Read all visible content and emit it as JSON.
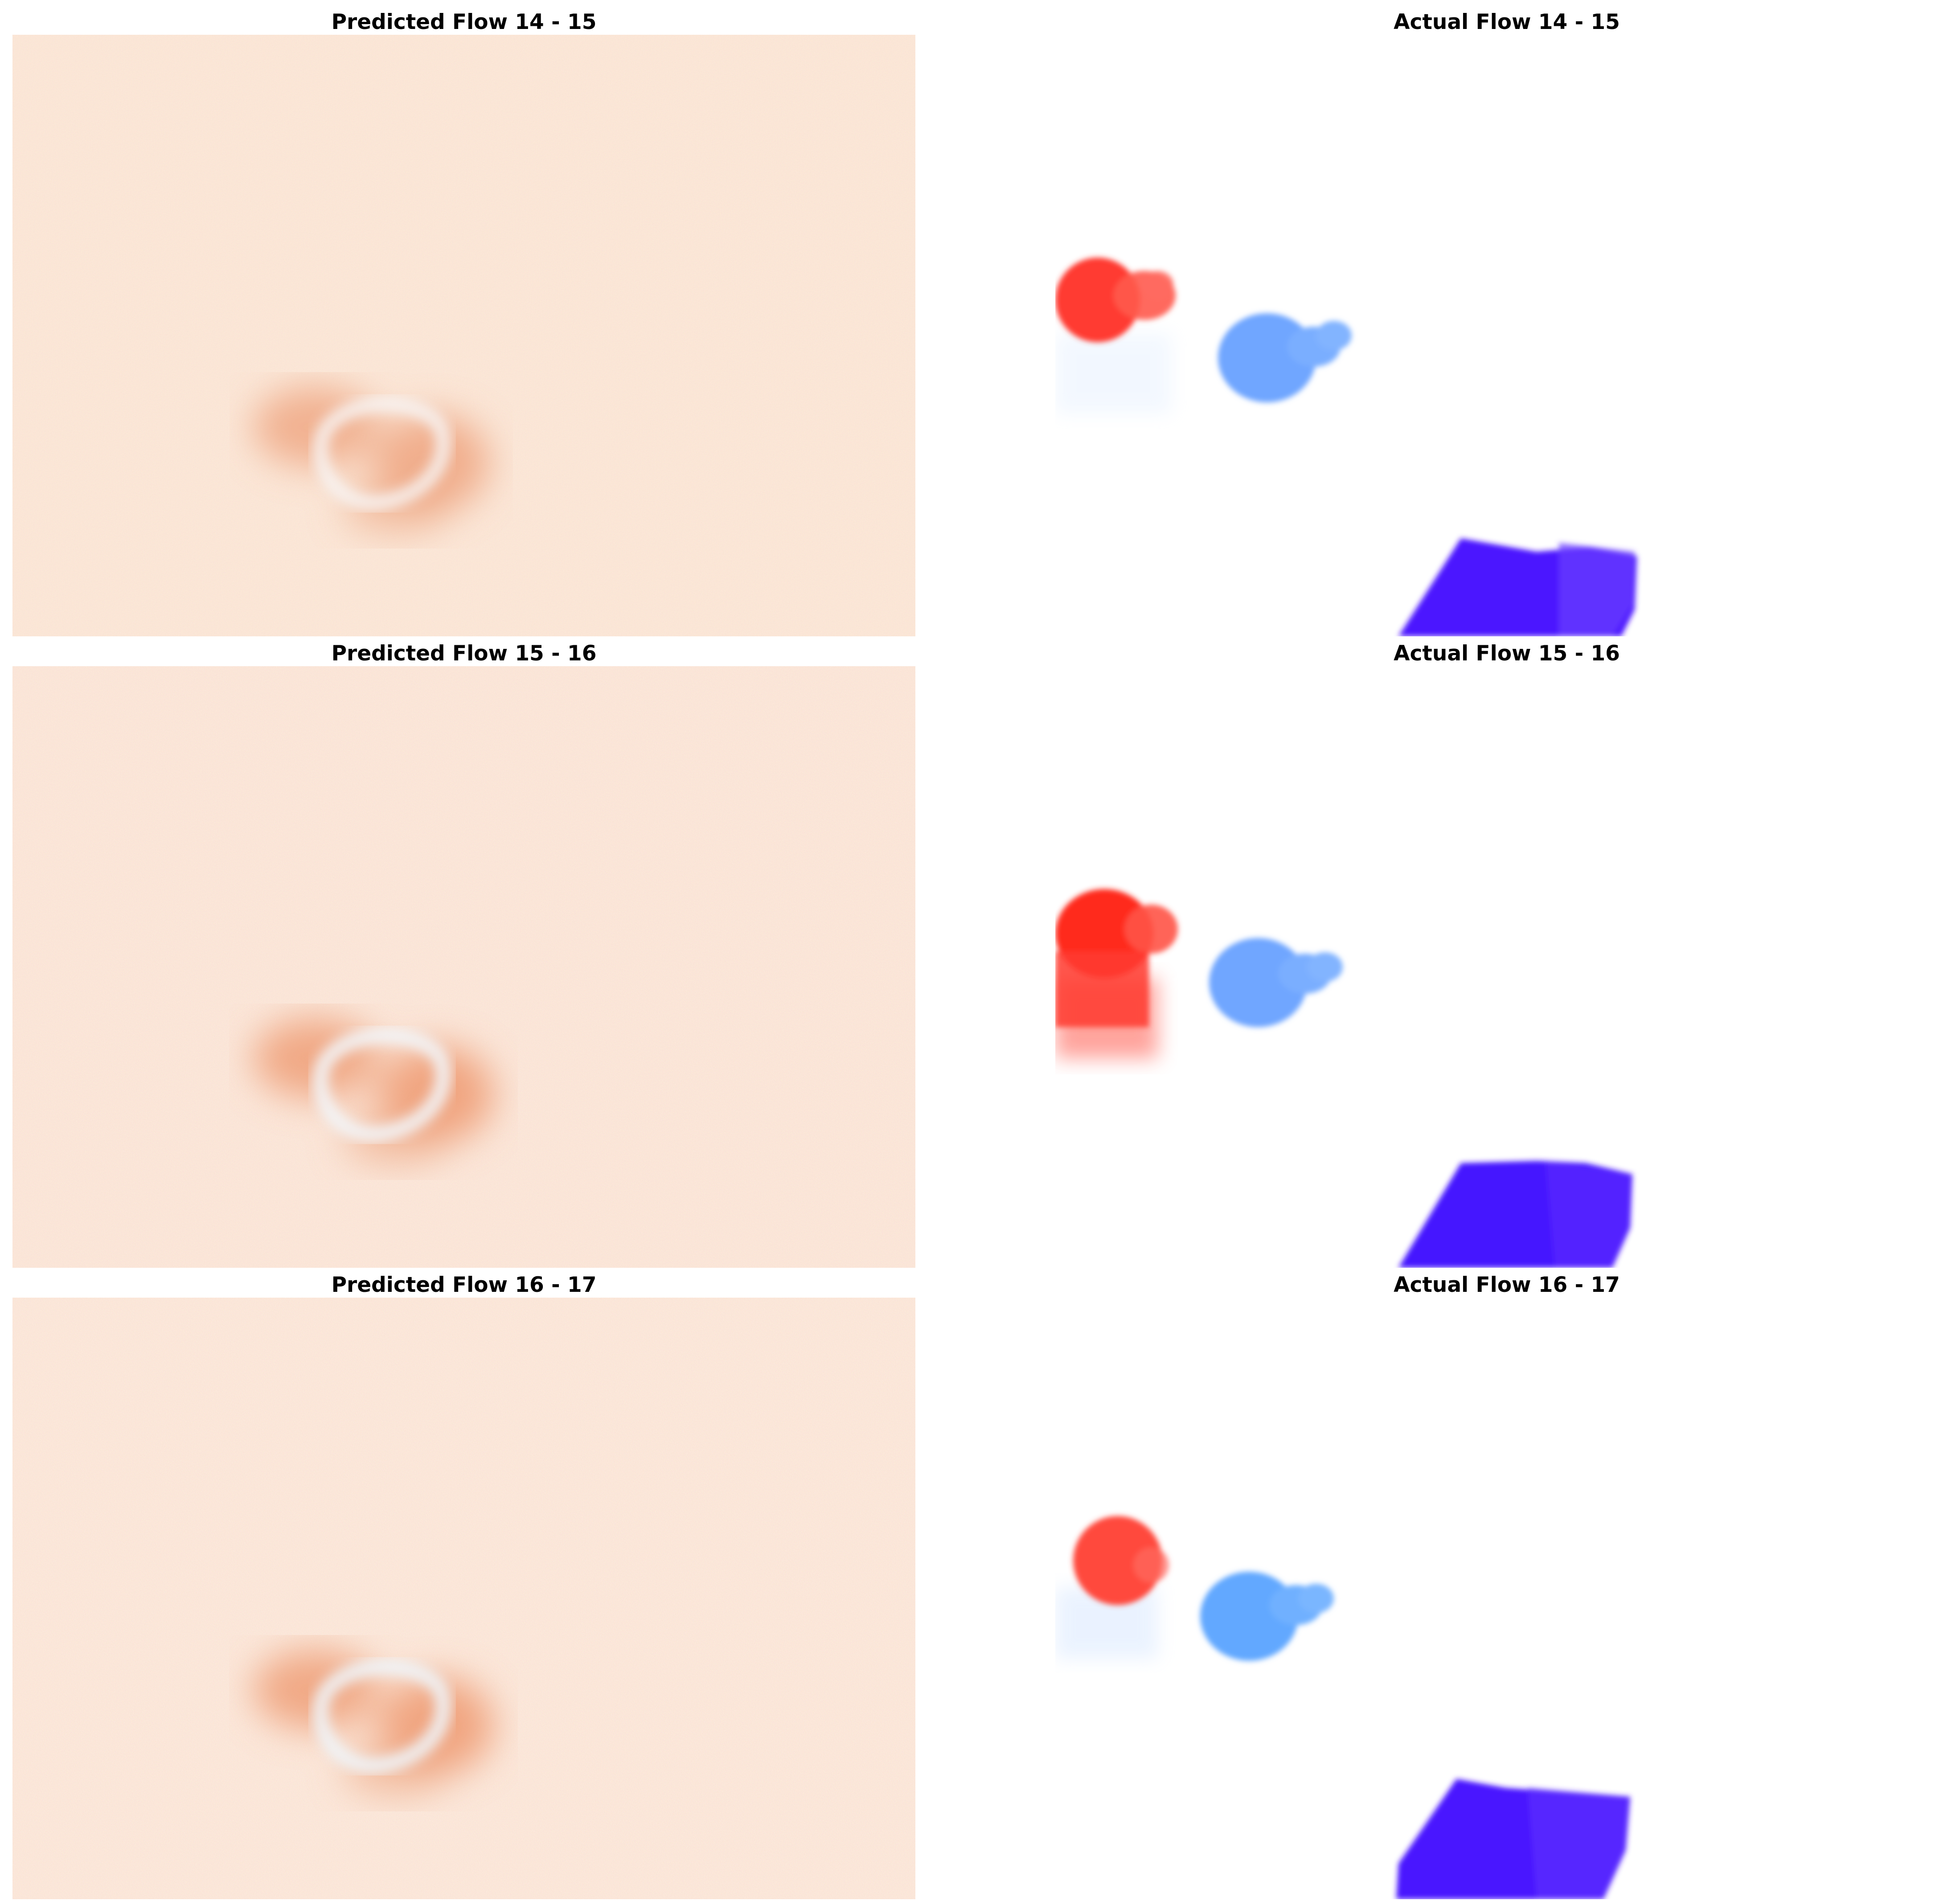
{
  "rows": [
    {
      "predicted_title": "Predicted Flow 14 - 15",
      "actual_title": "Actual Flow 14 - 15"
    },
    {
      "predicted_title": "Predicted Flow 15 - 16",
      "actual_title": "Actual Flow 15 - 16"
    },
    {
      "predicted_title": "Predicted Flow 16 - 17",
      "actual_title": "Actual Flow 16 - 17"
    }
  ],
  "colors": {
    "predicted_background": "#fbe3d2",
    "predicted_blob": "#f3a77f",
    "predicted_ring": "#f5f0f0",
    "actual_background": "#ffffff",
    "red_object": "#ff3a2c",
    "light_blue_object": "#6aa4ff",
    "violet_object": "#4d18ff"
  }
}
